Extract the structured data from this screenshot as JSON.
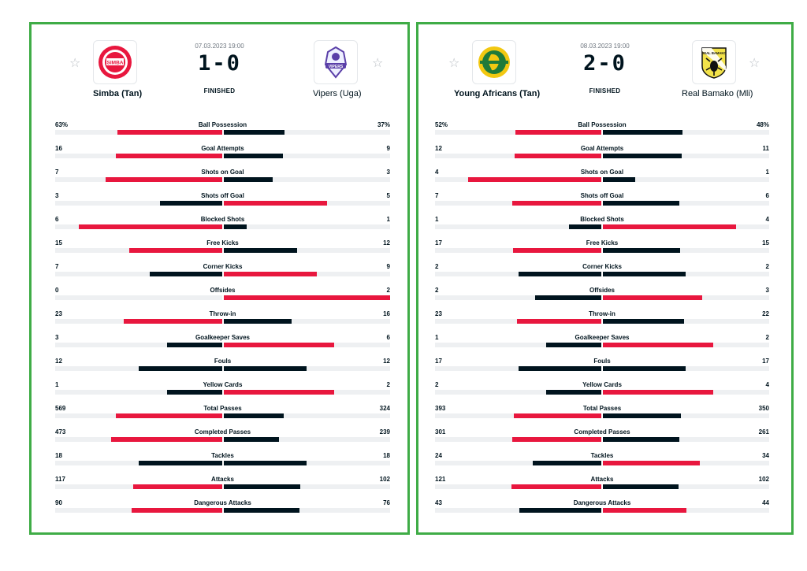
{
  "matches": [
    {
      "date": "07.03.2023 19:00",
      "score": "1-0",
      "status": "FINISHED",
      "home": {
        "name": "Simba (Tan)",
        "logo_text": "SIMBA",
        "logo_color": "#e8173e"
      },
      "away": {
        "name": "Vipers (Uga)",
        "logo_text": "VIPERS",
        "logo_color": "#5a3fa8"
      },
      "stats": [
        {
          "label": "Ball Possession",
          "home": "63%",
          "away": "37%"
        },
        {
          "label": "Goal Attempts",
          "home": "16",
          "away": "9"
        },
        {
          "label": "Shots on Goal",
          "home": "7",
          "away": "3"
        },
        {
          "label": "Shots off Goal",
          "home": "3",
          "away": "5"
        },
        {
          "label": "Blocked Shots",
          "home": "6",
          "away": "1"
        },
        {
          "label": "Free Kicks",
          "home": "15",
          "away": "12"
        },
        {
          "label": "Corner Kicks",
          "home": "7",
          "away": "9"
        },
        {
          "label": "Offsides",
          "home": "0",
          "away": "2"
        },
        {
          "label": "Throw-in",
          "home": "23",
          "away": "16"
        },
        {
          "label": "Goalkeeper Saves",
          "home": "3",
          "away": "6"
        },
        {
          "label": "Fouls",
          "home": "12",
          "away": "12"
        },
        {
          "label": "Yellow Cards",
          "home": "1",
          "away": "2"
        },
        {
          "label": "Total Passes",
          "home": "569",
          "away": "324"
        },
        {
          "label": "Completed Passes",
          "home": "473",
          "away": "239"
        },
        {
          "label": "Tackles",
          "home": "18",
          "away": "18"
        },
        {
          "label": "Attacks",
          "home": "117",
          "away": "102"
        },
        {
          "label": "Dangerous Attacks",
          "home": "90",
          "away": "76"
        }
      ]
    },
    {
      "date": "08.03.2023 19:00",
      "score": "2-0",
      "status": "FINISHED",
      "home": {
        "name": "Young Africans (Tan)",
        "logo_text": "YANGA",
        "logo_color": "#f2c811"
      },
      "away": {
        "name": "Real Bamako (Mli)",
        "logo_text": "REAL BAMAKO",
        "logo_color": "#111111"
      },
      "stats": [
        {
          "label": "Ball Possession",
          "home": "52%",
          "away": "48%"
        },
        {
          "label": "Goal Attempts",
          "home": "12",
          "away": "11"
        },
        {
          "label": "Shots on Goal",
          "home": "4",
          "away": "1"
        },
        {
          "label": "Shots off Goal",
          "home": "7",
          "away": "6"
        },
        {
          "label": "Blocked Shots",
          "home": "1",
          "away": "4"
        },
        {
          "label": "Free Kicks",
          "home": "17",
          "away": "15"
        },
        {
          "label": "Corner Kicks",
          "home": "2",
          "away": "2"
        },
        {
          "label": "Offsides",
          "home": "2",
          "away": "3"
        },
        {
          "label": "Throw-in",
          "home": "23",
          "away": "22"
        },
        {
          "label": "Goalkeeper Saves",
          "home": "1",
          "away": "2"
        },
        {
          "label": "Fouls",
          "home": "17",
          "away": "17"
        },
        {
          "label": "Yellow Cards",
          "home": "2",
          "away": "4"
        },
        {
          "label": "Total Passes",
          "home": "393",
          "away": "350"
        },
        {
          "label": "Completed Passes",
          "home": "301",
          "away": "261"
        },
        {
          "label": "Tackles",
          "home": "24",
          "away": "34"
        },
        {
          "label": "Attacks",
          "home": "121",
          "away": "102"
        },
        {
          "label": "Dangerous Attacks",
          "home": "43",
          "away": "44"
        }
      ]
    }
  ],
  "colors": {
    "leader": "#e8173e",
    "trailer": "#00141e",
    "track": "#eef0f2",
    "frame": "#3fac46"
  },
  "icons": {
    "favorite": "star-outline-icon"
  }
}
